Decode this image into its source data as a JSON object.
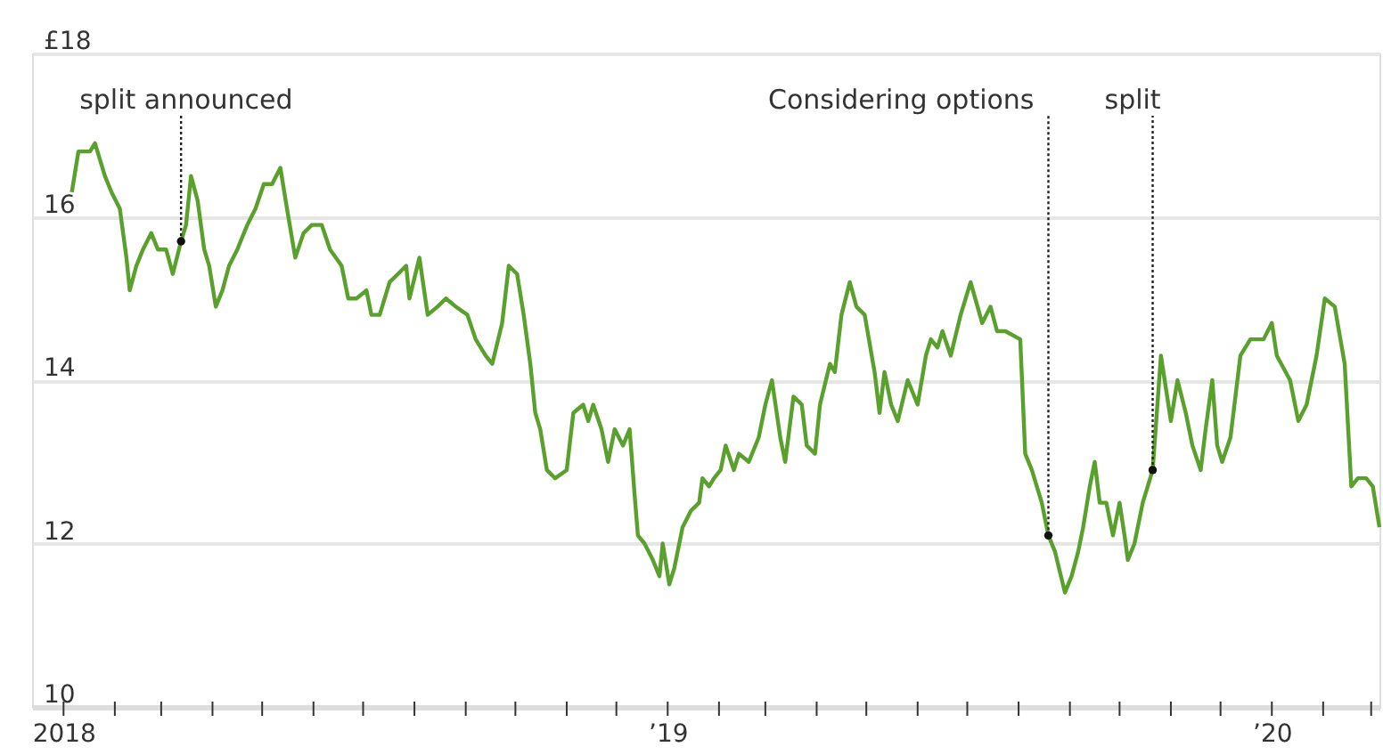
{
  "chart_data": {
    "type": "line",
    "x": [
      "2018-01-06",
      "2018-01-10",
      "2018-01-17",
      "2018-01-20",
      "2018-01-26",
      "2018-01-30",
      "2018-02-04",
      "2018-02-08",
      "2018-02-10",
      "2018-02-14",
      "2018-02-18",
      "2018-02-23",
      "2018-02-27",
      "2018-03-04",
      "2018-03-08",
      "2018-03-13",
      "2018-03-16",
      "2018-03-19",
      "2018-03-23",
      "2018-03-27",
      "2018-03-30",
      "2018-04-03",
      "2018-04-07",
      "2018-04-11",
      "2018-04-16",
      "2018-04-22",
      "2018-04-27",
      "2018-05-02",
      "2018-05-07",
      "2018-05-12",
      "2018-05-16",
      "2018-05-21",
      "2018-05-26",
      "2018-05-31",
      "2018-06-06",
      "2018-06-11",
      "2018-06-18",
      "2018-06-22",
      "2018-06-27",
      "2018-07-03",
      "2018-07-06",
      "2018-07-11",
      "2018-07-17",
      "2018-07-22",
      "2018-07-27",
      "2018-07-29",
      "2018-08-04",
      "2018-08-09",
      "2018-08-15",
      "2018-08-20",
      "2018-08-26",
      "2018-09-02",
      "2018-09-07",
      "2018-09-13",
      "2018-09-17",
      "2018-09-23",
      "2018-09-27",
      "2018-10-02",
      "2018-10-06",
      "2018-10-10",
      "2018-10-13",
      "2018-10-16",
      "2018-10-20",
      "2018-10-25",
      "2018-11-01",
      "2018-11-05",
      "2018-11-11",
      "2018-11-14",
      "2018-11-17",
      "2018-11-22",
      "2018-11-26",
      "2018-11-30",
      "2018-12-05",
      "2018-12-09",
      "2018-12-12",
      "2018-12-14",
      "2018-12-18",
      "2018-12-23",
      "2018-12-27",
      "2018-12-29",
      "2019-01-02",
      "2019-01-05",
      "2019-01-10",
      "2019-01-15",
      "2019-01-20",
      "2019-01-22",
      "2019-01-26",
      "2019-01-29",
      "2019-02-02",
      "2019-02-05",
      "2019-02-10",
      "2019-02-13",
      "2019-02-19",
      "2019-02-25",
      "2019-03-01",
      "2019-03-05",
      "2019-03-10",
      "2019-03-13",
      "2019-03-18",
      "2019-03-23",
      "2019-03-26",
      "2019-03-31",
      "2019-04-03",
      "2019-04-09",
      "2019-04-12",
      "2019-04-16",
      "2019-04-21",
      "2019-04-25",
      "2019-04-30",
      "2019-05-06",
      "2019-05-09",
      "2019-05-12",
      "2019-05-16",
      "2019-05-20",
      "2019-05-26",
      "2019-06-01",
      "2019-06-06",
      "2019-06-09",
      "2019-06-13",
      "2019-06-16",
      "2019-06-21",
      "2019-06-27",
      "2019-07-03",
      "2019-07-10",
      "2019-07-15",
      "2019-07-19",
      "2019-07-24",
      "2019-08-02",
      "2019-08-05",
      "2019-08-09",
      "2019-08-15",
      "2019-08-19",
      "2019-08-23",
      "2019-08-29",
      "2019-09-02",
      "2019-09-06",
      "2019-09-09",
      "2019-09-13",
      "2019-09-16",
      "2019-09-19",
      "2019-09-23",
      "2019-09-27",
      "2019-10-01",
      "2019-10-04",
      "2019-10-06",
      "2019-10-10",
      "2019-10-15",
      "2019-10-18",
      "2019-10-21",
      "2019-10-26",
      "2019-10-29",
      "2019-11-01",
      "2019-11-05",
      "2019-11-10",
      "2019-11-14",
      "2019-11-19",
      "2019-11-22",
      "2019-11-26",
      "2019-11-29",
      "2019-12-02",
      "2019-12-07",
      "2019-12-13",
      "2019-12-19",
      "2019-12-27",
      "2020-01-01",
      "2020-01-04",
      "2020-01-12",
      "2020-01-17",
      "2020-01-22",
      "2020-01-28",
      "2020-02-02",
      "2020-02-08",
      "2020-02-14",
      "2020-02-18",
      "2020-02-22",
      "2020-02-27",
      "2020-03-02",
      "2020-03-06"
    ],
    "series": [
      {
        "color": "#5aa02c",
        "values": [
          16.3,
          16.8,
          16.8,
          16.9,
          16.5,
          16.3,
          16.1,
          15.5,
          15.1,
          15.4,
          15.6,
          15.8,
          15.6,
          15.6,
          15.3,
          15.7,
          15.9,
          16.5,
          16.2,
          15.6,
          15.4,
          14.9,
          15.1,
          15.4,
          15.6,
          15.9,
          16.1,
          16.4,
          16.4,
          16.6,
          16.1,
          15.5,
          15.8,
          15.9,
          15.9,
          15.6,
          15.4,
          15.0,
          15.0,
          15.1,
          14.8,
          14.8,
          15.2,
          15.3,
          15.4,
          15.0,
          15.5,
          14.8,
          14.9,
          15.0,
          14.9,
          14.8,
          14.5,
          14.3,
          14.2,
          14.7,
          15.4,
          15.3,
          14.8,
          14.2,
          13.6,
          13.4,
          12.9,
          12.8,
          12.9,
          13.6,
          13.7,
          13.5,
          13.7,
          13.4,
          13.0,
          13.4,
          13.2,
          13.4,
          12.6,
          12.1,
          12.0,
          11.8,
          11.6,
          12.0,
          11.5,
          11.7,
          12.2,
          12.4,
          12.5,
          12.8,
          12.7,
          12.8,
          12.9,
          13.2,
          12.9,
          13.1,
          13.0,
          13.3,
          13.7,
          14.0,
          13.3,
          13.0,
          13.8,
          13.7,
          13.2,
          13.1,
          13.7,
          14.2,
          14.1,
          14.8,
          15.2,
          14.9,
          14.8,
          14.1,
          13.6,
          14.1,
          13.7,
          13.5,
          14.0,
          13.7,
          14.3,
          14.5,
          14.4,
          14.6,
          14.3,
          14.8,
          15.2,
          14.7,
          14.9,
          14.6,
          14.6,
          14.5,
          13.1,
          12.9,
          12.5,
          12.1,
          11.9,
          11.4,
          11.6,
          11.9,
          12.2,
          12.7,
          13.0,
          12.5,
          12.5,
          12.1,
          12.5,
          12.1,
          11.8,
          12.0,
          12.5,
          12.7,
          12.9,
          14.3,
          13.9,
          13.5,
          14.0,
          13.6,
          13.2,
          12.9,
          13.4,
          14.0,
          13.2,
          13.0,
          13.3,
          14.3,
          14.5,
          14.5,
          14.7,
          14.3,
          14.0,
          13.5,
          13.7,
          14.3,
          15.0,
          14.9,
          14.2,
          12.7,
          12.8,
          12.8,
          12.7,
          12.2
        ]
      }
    ],
    "xlim": [
      "2017-12-13",
      "2020-03-06"
    ],
    "xticks": [
      {
        "value": "2018-01-01",
        "label": "2018"
      },
      {
        "value": "2018-02-01",
        "label": null
      },
      {
        "value": "2018-03-01",
        "label": null
      },
      {
        "value": "2018-04-01",
        "label": null
      },
      {
        "value": "2018-05-01",
        "label": null
      },
      {
        "value": "2018-06-01",
        "label": null
      },
      {
        "value": "2018-07-01",
        "label": null
      },
      {
        "value": "2018-08-01",
        "label": null
      },
      {
        "value": "2018-09-01",
        "label": null
      },
      {
        "value": "2018-10-01",
        "label": null
      },
      {
        "value": "2018-11-01",
        "label": null
      },
      {
        "value": "2018-12-01",
        "label": null
      },
      {
        "value": "2019-01-01",
        "label": "’19"
      },
      {
        "value": "2019-02-01",
        "label": null
      },
      {
        "value": "2019-03-01",
        "label": null
      },
      {
        "value": "2019-04-01",
        "label": null
      },
      {
        "value": "2019-05-01",
        "label": null
      },
      {
        "value": "2019-06-01",
        "label": null
      },
      {
        "value": "2019-07-01",
        "label": null
      },
      {
        "value": "2019-08-01",
        "label": null
      },
      {
        "value": "2019-09-01",
        "label": null
      },
      {
        "value": "2019-10-01",
        "label": null
      },
      {
        "value": "2019-11-01",
        "label": null
      },
      {
        "value": "2019-12-01",
        "label": null
      },
      {
        "value": "2020-01-01",
        "label": "’20"
      },
      {
        "value": "2020-02-01",
        "label": null
      },
      {
        "value": "2020-03-01",
        "label": null
      }
    ],
    "ylim": [
      10,
      18
    ],
    "yticks": [
      10,
      12,
      14,
      16,
      {
        "value": 18,
        "label": "£18"
      }
    ],
    "grid": "y",
    "annotations": [
      {
        "text": "split announced",
        "x": "2018-03-13",
        "y": 15.7
      },
      {
        "text": "Considering options",
        "x": "2019-08-19",
        "y": 12.1
      },
      {
        "text": "split",
        "x": "2019-10-21",
        "y": 12.9
      }
    ]
  }
}
